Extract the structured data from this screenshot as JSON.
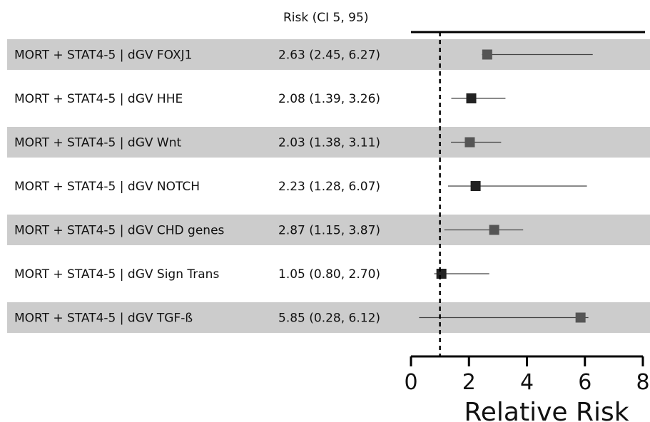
{
  "chart_data": {
    "type": "forest",
    "column_header": "Risk (CI 5, 95)",
    "xlabel": "Relative Risk",
    "xlim": [
      0,
      8
    ],
    "xticks": [
      0,
      2,
      4,
      6,
      8
    ],
    "reference_line": 1,
    "rows": [
      {
        "label": "MORT + STAT4-5 | dGV FOXJ1",
        "risk_text": "2.63  (2.45, 6.27)",
        "estimate": 2.63,
        "lower": 2.45,
        "upper": 6.27,
        "shaded": true,
        "marker_color": "#555555"
      },
      {
        "label": "MORT + STAT4-5 | dGV HHE",
        "risk_text": "2.08  (1.39, 3.26)",
        "estimate": 2.08,
        "lower": 1.39,
        "upper": 3.26,
        "shaded": false,
        "marker_color": "#222222"
      },
      {
        "label": "MORT + STAT4-5 | dGV Wnt",
        "risk_text": "2.03  (1.38, 3.11)",
        "estimate": 2.03,
        "lower": 1.38,
        "upper": 3.11,
        "shaded": true,
        "marker_color": "#555555"
      },
      {
        "label": "MORT + STAT4-5 | dGV NOTCH",
        "risk_text": "2.23  (1.28, 6.07)",
        "estimate": 2.23,
        "lower": 1.28,
        "upper": 6.07,
        "shaded": false,
        "marker_color": "#222222"
      },
      {
        "label": "MORT + STAT4-5 | dGV CHD genes",
        "risk_text": "2.87  (1.15, 3.87)",
        "estimate": 2.87,
        "lower": 1.15,
        "upper": 3.87,
        "shaded": true,
        "marker_color": "#555555"
      },
      {
        "label": "MORT + STAT4-5 | dGV Sign Trans",
        "risk_text": "1.05  (0.80, 2.70)",
        "estimate": 1.05,
        "lower": 0.8,
        "upper": 2.7,
        "shaded": false,
        "marker_color": "#222222"
      },
      {
        "label": "MORT + STAT4-5 | dGV TGF-ß",
        "risk_text": "5.85  (0.28, 6.12)",
        "estimate": 5.85,
        "lower": 0.28,
        "upper": 6.12,
        "shaded": true,
        "marker_color": "#555555"
      }
    ],
    "colors": {
      "band": "#cccccc",
      "axis": "#000000",
      "whisker": "#444444"
    }
  }
}
